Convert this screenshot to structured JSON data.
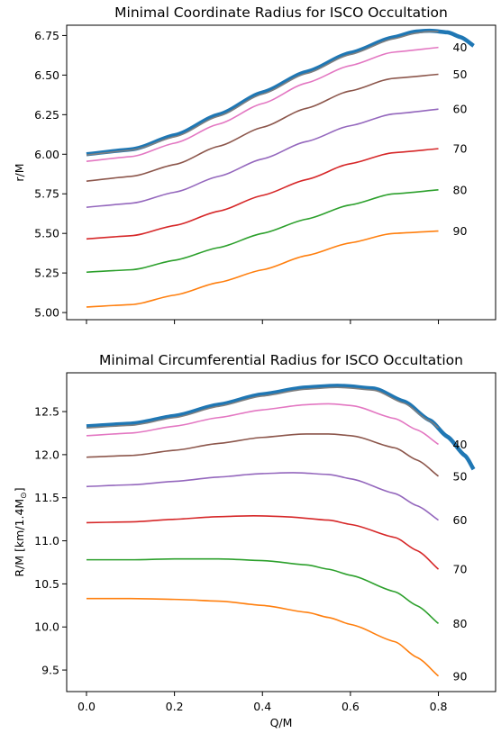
{
  "chart_data": [
    {
      "type": "line",
      "title": "Minimal Coordinate Radius for ISCO Occultation",
      "xlabel": "",
      "ylabel": "r/M",
      "xlim": [
        -0.045,
        0.93
      ],
      "ylim": [
        4.955,
        6.815
      ],
      "xticks": [
        0.0,
        0.2,
        0.4,
        0.6,
        0.8
      ],
      "show_xticklabels": false,
      "yticks": [
        {
          "v": 5.0,
          "label": "5.00"
        },
        {
          "v": 5.25,
          "label": "5.25"
        },
        {
          "v": 5.5,
          "label": "5.50"
        },
        {
          "v": 5.75,
          "label": "5.75"
        },
        {
          "v": 6.0,
          "label": "6.00"
        },
        {
          "v": 6.25,
          "label": "6.25"
        },
        {
          "v": 6.5,
          "label": "6.50"
        },
        {
          "v": 6.75,
          "label": "6.75"
        }
      ],
      "grid": false,
      "series": [
        {
          "name": "",
          "color": "#1f77b4",
          "width": 4.5,
          "x": [
            0.0,
            0.1,
            0.2,
            0.3,
            0.4,
            0.5,
            0.6,
            0.7,
            0.75,
            0.78,
            0.82,
            0.85,
            0.88
          ],
          "y": [
            6.0,
            6.03,
            6.12,
            6.25,
            6.39,
            6.52,
            6.64,
            6.74,
            6.775,
            6.78,
            6.77,
            6.74,
            6.685
          ]
        },
        {
          "name": "",
          "color": "#7f7f7f",
          "width": 1.6,
          "x": [
            0.0,
            0.1,
            0.2,
            0.3,
            0.4,
            0.5,
            0.6,
            0.7,
            0.75,
            0.78,
            0.8
          ],
          "y": [
            5.995,
            6.025,
            6.11,
            6.24,
            6.38,
            6.51,
            6.63,
            6.73,
            6.765,
            6.775,
            6.775
          ]
        },
        {
          "name": "40",
          "color": "#e377c2",
          "width": 1.6,
          "x": [
            0.0,
            0.1,
            0.2,
            0.3,
            0.4,
            0.5,
            0.6,
            0.7,
            0.8
          ],
          "y": [
            5.955,
            5.985,
            6.07,
            6.19,
            6.32,
            6.45,
            6.56,
            6.645,
            6.675
          ]
        },
        {
          "name": "50",
          "color": "#8c564b",
          "width": 1.6,
          "x": [
            0.0,
            0.1,
            0.2,
            0.3,
            0.4,
            0.5,
            0.6,
            0.7,
            0.8
          ],
          "y": [
            5.83,
            5.86,
            5.935,
            6.05,
            6.17,
            6.29,
            6.4,
            6.48,
            6.505
          ]
        },
        {
          "name": "60",
          "color": "#9467bd",
          "width": 1.6,
          "x": [
            0.0,
            0.1,
            0.2,
            0.3,
            0.4,
            0.5,
            0.6,
            0.7,
            0.8
          ],
          "y": [
            5.665,
            5.69,
            5.76,
            5.86,
            5.97,
            6.08,
            6.18,
            6.255,
            6.285
          ]
        },
        {
          "name": "70",
          "color": "#d62728",
          "width": 1.6,
          "x": [
            0.0,
            0.1,
            0.2,
            0.3,
            0.4,
            0.5,
            0.6,
            0.7,
            0.8
          ],
          "y": [
            5.465,
            5.485,
            5.55,
            5.64,
            5.74,
            5.84,
            5.94,
            6.01,
            6.035
          ]
        },
        {
          "name": "80",
          "color": "#2ca02c",
          "width": 1.6,
          "x": [
            0.0,
            0.1,
            0.2,
            0.3,
            0.4,
            0.5,
            0.6,
            0.7,
            0.8
          ],
          "y": [
            5.255,
            5.27,
            5.33,
            5.41,
            5.5,
            5.59,
            5.68,
            5.75,
            5.775
          ]
        },
        {
          "name": "90",
          "color": "#ff7f0e",
          "width": 1.6,
          "x": [
            0.0,
            0.1,
            0.2,
            0.3,
            0.4,
            0.5,
            0.6,
            0.7,
            0.8
          ],
          "y": [
            5.035,
            5.05,
            5.11,
            5.19,
            5.27,
            5.36,
            5.44,
            5.5,
            5.515
          ]
        }
      ]
    },
    {
      "type": "line",
      "title": "Minimal Circumferential Radius for ISCO Occultation",
      "xlabel": "Q/M",
      "ylabel": "R/M [km/1.4M",
      "ylabel_sub": "⊙",
      "ylabel_end": "]",
      "xlim": [
        -0.045,
        0.93
      ],
      "ylim": [
        9.25,
        12.95
      ],
      "xticks": [
        0.0,
        0.2,
        0.4,
        0.6,
        0.8
      ],
      "show_xticklabels": true,
      "xticklabels": [
        "0.0",
        "0.2",
        "0.4",
        "0.6",
        "0.8"
      ],
      "yticks": [
        {
          "v": 9.5,
          "label": "9.5"
        },
        {
          "v": 10.0,
          "label": "10.0"
        },
        {
          "v": 10.5,
          "label": "10.5"
        },
        {
          "v": 11.0,
          "label": "11.0"
        },
        {
          "v": 11.5,
          "label": "11.5"
        },
        {
          "v": 12.0,
          "label": "12.0"
        },
        {
          "v": 12.5,
          "label": "12.5"
        }
      ],
      "grid": false,
      "series": [
        {
          "name": "",
          "color": "#1f77b4",
          "width": 4.5,
          "x": [
            0.0,
            0.1,
            0.2,
            0.3,
            0.4,
            0.5,
            0.57,
            0.65,
            0.72,
            0.78,
            0.82,
            0.86,
            0.88
          ],
          "y": [
            12.33,
            12.36,
            12.45,
            12.58,
            12.7,
            12.78,
            12.8,
            12.77,
            12.62,
            12.4,
            12.21,
            11.99,
            11.83
          ]
        },
        {
          "name": "",
          "color": "#7f7f7f",
          "width": 1.6,
          "x": [
            0.0,
            0.1,
            0.2,
            0.3,
            0.4,
            0.5,
            0.57,
            0.65,
            0.72,
            0.78,
            0.8
          ],
          "y": [
            12.31,
            12.34,
            12.43,
            12.56,
            12.68,
            12.76,
            12.78,
            12.75,
            12.6,
            12.39,
            12.31
          ]
        },
        {
          "name": "40",
          "color": "#e377c2",
          "width": 1.6,
          "x": [
            0.0,
            0.1,
            0.2,
            0.3,
            0.4,
            0.5,
            0.55,
            0.6,
            0.7,
            0.75,
            0.8
          ],
          "y": [
            12.22,
            12.25,
            12.33,
            12.43,
            12.52,
            12.58,
            12.59,
            12.57,
            12.42,
            12.29,
            12.12
          ]
        },
        {
          "name": "50",
          "color": "#8c564b",
          "width": 1.6,
          "x": [
            0.0,
            0.1,
            0.2,
            0.3,
            0.4,
            0.5,
            0.55,
            0.6,
            0.7,
            0.75,
            0.8
          ],
          "y": [
            11.97,
            11.99,
            12.05,
            12.13,
            12.2,
            12.24,
            12.24,
            12.22,
            12.08,
            11.94,
            11.75
          ]
        },
        {
          "name": "60",
          "color": "#9467bd",
          "width": 1.6,
          "x": [
            0.0,
            0.1,
            0.2,
            0.3,
            0.4,
            0.47,
            0.55,
            0.6,
            0.7,
            0.75,
            0.8
          ],
          "y": [
            11.63,
            11.65,
            11.69,
            11.74,
            11.78,
            11.79,
            11.77,
            11.72,
            11.55,
            11.41,
            11.24
          ]
        },
        {
          "name": "70",
          "color": "#d62728",
          "width": 1.6,
          "x": [
            0.0,
            0.1,
            0.2,
            0.3,
            0.38,
            0.45,
            0.55,
            0.6,
            0.7,
            0.75,
            0.8
          ],
          "y": [
            11.21,
            11.22,
            11.25,
            11.28,
            11.29,
            11.28,
            11.24,
            11.19,
            11.04,
            10.89,
            10.67
          ]
        },
        {
          "name": "80",
          "color": "#2ca02c",
          "width": 1.6,
          "x": [
            0.0,
            0.1,
            0.2,
            0.3,
            0.4,
            0.5,
            0.55,
            0.6,
            0.7,
            0.75,
            0.8
          ],
          "y": [
            10.78,
            10.78,
            10.79,
            10.79,
            10.77,
            10.72,
            10.67,
            10.6,
            10.41,
            10.25,
            10.04
          ]
        },
        {
          "name": "90",
          "color": "#ff7f0e",
          "width": 1.6,
          "x": [
            0.0,
            0.1,
            0.2,
            0.3,
            0.4,
            0.5,
            0.55,
            0.6,
            0.7,
            0.75,
            0.8
          ],
          "y": [
            10.33,
            10.33,
            10.32,
            10.3,
            10.25,
            10.17,
            10.11,
            10.03,
            9.83,
            9.65,
            9.43
          ]
        }
      ]
    }
  ]
}
